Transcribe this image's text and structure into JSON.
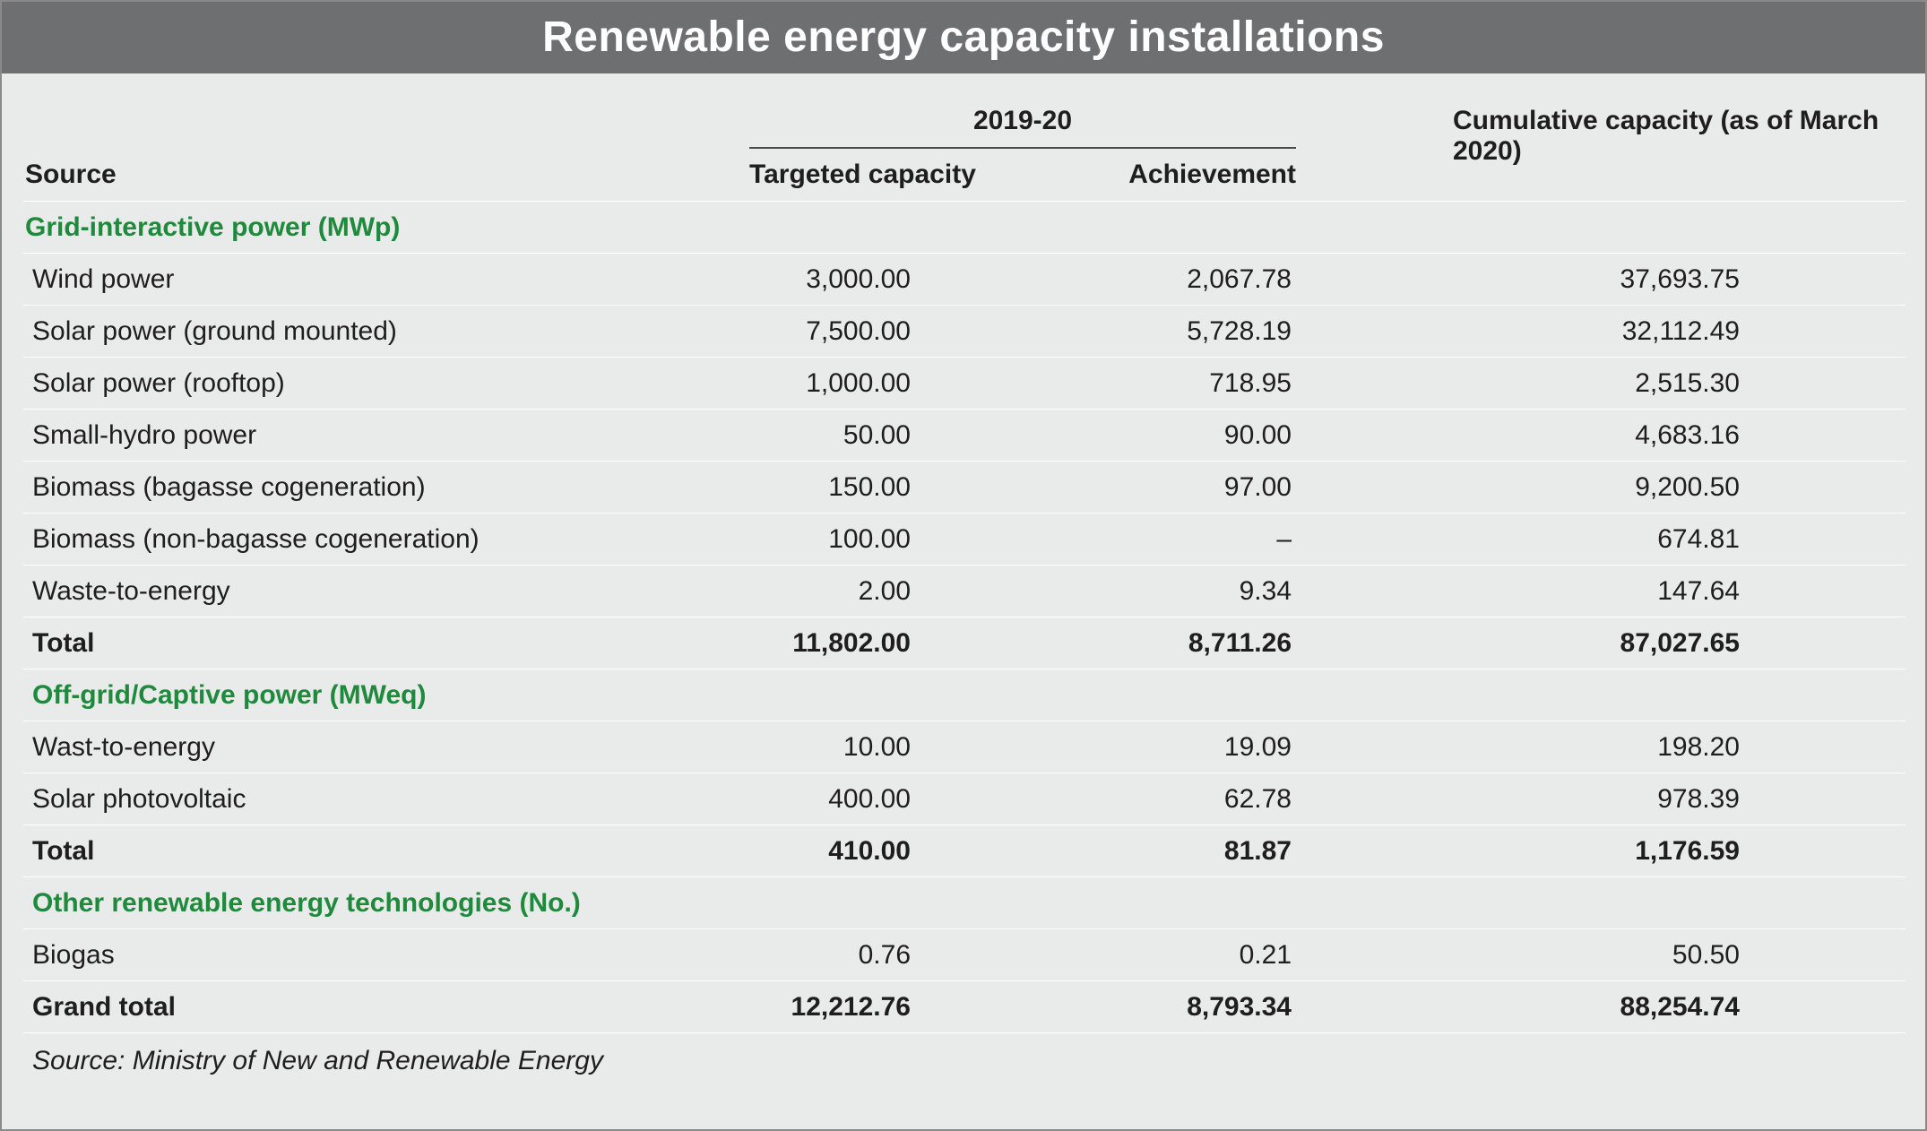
{
  "title": "Renewable energy capacity installations",
  "chart_data": {
    "type": "table",
    "title": "Renewable energy capacity installations",
    "headers": {
      "group_label": "2019-20",
      "source": "Source",
      "targeted": "Targeted capacity",
      "achievement": "Achievement",
      "cumulative": "Cumulative capacity (as of March 2020)"
    },
    "rows": [
      {
        "kind": "section",
        "label": "Grid-interactive power (MWp)",
        "targeted": "",
        "achievement": "",
        "cumulative": ""
      },
      {
        "kind": "data",
        "label": "Wind power",
        "targeted": "3,000.00",
        "achievement": "2,067.78",
        "cumulative": "37,693.75"
      },
      {
        "kind": "data",
        "label": "Solar power (ground mounted)",
        "targeted": "7,500.00",
        "achievement": "5,728.19",
        "cumulative": "32,112.49"
      },
      {
        "kind": "data",
        "label": "Solar power (rooftop)",
        "targeted": "1,000.00",
        "achievement": "718.95",
        "cumulative": "2,515.30"
      },
      {
        "kind": "data",
        "label": "Small-hydro power",
        "targeted": "50.00",
        "achievement": "90.00",
        "cumulative": "4,683.16"
      },
      {
        "kind": "data",
        "label": "Biomass (bagasse cogeneration)",
        "targeted": "150.00",
        "achievement": "97.00",
        "cumulative": "9,200.50"
      },
      {
        "kind": "data",
        "label": "Biomass (non-bagasse cogeneration)",
        "targeted": "100.00",
        "achievement": "–",
        "cumulative": "674.81"
      },
      {
        "kind": "data",
        "label": "Waste-to-energy",
        "targeted": "2.00",
        "achievement": "9.34",
        "cumulative": "147.64"
      },
      {
        "kind": "total",
        "label": "Total",
        "targeted": "11,802.00",
        "achievement": "8,711.26",
        "cumulative": "87,027.65"
      },
      {
        "kind": "section",
        "label": "Off-grid/Captive power (MWeq)",
        "targeted": "",
        "achievement": "",
        "cumulative": ""
      },
      {
        "kind": "data",
        "label": "Wast-to-energy",
        "targeted": "10.00",
        "achievement": "19.09",
        "cumulative": "198.20"
      },
      {
        "kind": "data",
        "label": "Solar photovoltaic",
        "targeted": "400.00",
        "achievement": "62.78",
        "cumulative": "978.39"
      },
      {
        "kind": "total",
        "label": "Total",
        "targeted": "410.00",
        "achievement": "81.87",
        "cumulative": "1,176.59"
      },
      {
        "kind": "section",
        "label": "Other renewable energy technologies (No.)",
        "targeted": "",
        "achievement": "",
        "cumulative": ""
      },
      {
        "kind": "data",
        "label": "Biogas",
        "targeted": "0.76",
        "achievement": "0.21",
        "cumulative": "50.50"
      },
      {
        "kind": "total",
        "label": "Grand total",
        "targeted": "12,212.76",
        "achievement": "8,793.34",
        "cumulative": "88,254.74"
      }
    ],
    "source_note": "Source: Ministry of New and Renewable Energy",
    "colors": {
      "title_bar": "#6e6f70",
      "section_label": "#1f8a3c",
      "background": "#e9eaea"
    }
  }
}
